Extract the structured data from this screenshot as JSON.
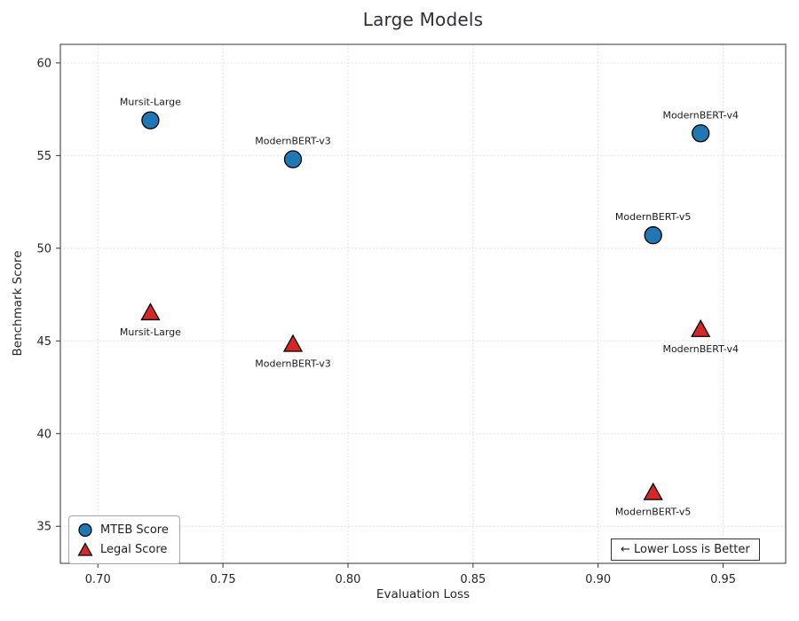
{
  "chart_data": {
    "type": "scatter",
    "title": "Large Models",
    "xlabel": "Evaluation Loss",
    "ylabel": "Benchmark Score",
    "xlim": [
      0.685,
      0.975
    ],
    "ylim": [
      33,
      61
    ],
    "xticks": [
      "0.70",
      "0.75",
      "0.80",
      "0.85",
      "0.90",
      "0.95"
    ],
    "yticks": [
      "35",
      "40",
      "45",
      "50",
      "55",
      "60"
    ],
    "grid": true,
    "legend_position": "lower-left",
    "edge_color": "#000000",
    "annotation": "← Lower Loss is Better",
    "series": [
      {
        "name": "MTEB Score",
        "marker": "circle",
        "color": "#1f77b4",
        "points": [
          {
            "label": "Mursit-Large",
            "x": 0.721,
            "y": 56.9,
            "label_pos": "above"
          },
          {
            "label": "ModernBERT-v3",
            "x": 0.778,
            "y": 54.8,
            "label_pos": "above"
          },
          {
            "label": "ModernBERT-v4",
            "x": 0.941,
            "y": 56.2,
            "label_pos": "above"
          },
          {
            "label": "ModernBERT-v5",
            "x": 0.922,
            "y": 50.7,
            "label_pos": "above"
          }
        ]
      },
      {
        "name": "Legal Score",
        "marker": "triangle",
        "color": "#d62728",
        "points": [
          {
            "label": "Mursit-Large",
            "x": 0.721,
            "y": 46.5,
            "label_pos": "below"
          },
          {
            "label": "ModernBERT-v3",
            "x": 0.778,
            "y": 44.8,
            "label_pos": "below"
          },
          {
            "label": "ModernBERT-v4",
            "x": 0.941,
            "y": 45.6,
            "label_pos": "below"
          },
          {
            "label": "ModernBERT-v5",
            "x": 0.922,
            "y": 36.8,
            "label_pos": "below"
          }
        ]
      }
    ]
  }
}
